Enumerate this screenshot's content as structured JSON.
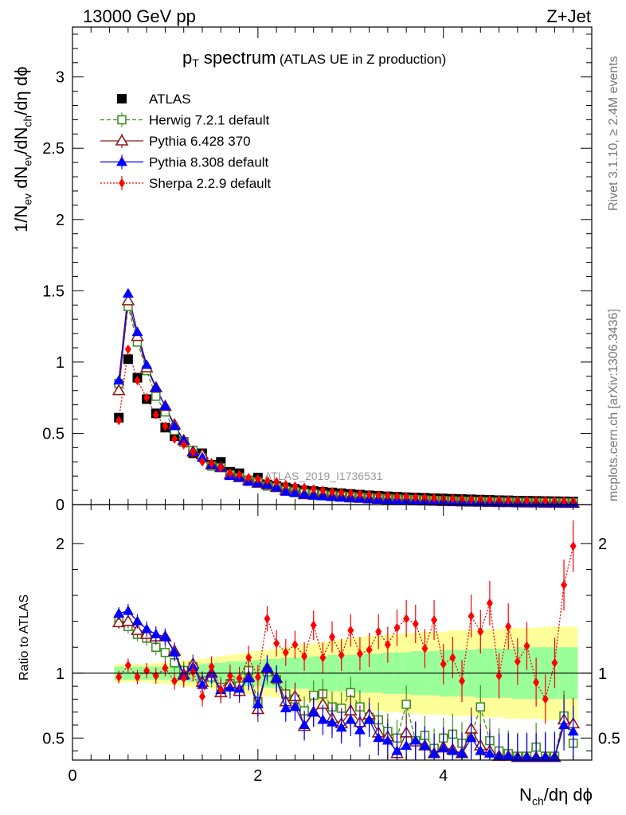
{
  "header": {
    "beam": "13000 GeV pp",
    "process": "Z+Jet"
  },
  "side_labels": {
    "rivet": "Rivet 3.1.10, ≥ 2.4M events",
    "mcplots": "mcplots.cern.ch [arXiv:1306.3436]"
  },
  "colors": {
    "atlas": "#000000",
    "herwig": "#3f8f1f",
    "pythia6": "#8b1a1a",
    "pythia8": "#0000ff",
    "sherpa": "#ff0000",
    "band_yellow": "#ffff99",
    "band_green": "#99ff99"
  },
  "chart_data": [
    {
      "type": "scatter",
      "title": "p_T spectrum (ATLAS UE in Z production)",
      "title_main": "p",
      "title_sub": "T",
      "title_rest": " spectrum",
      "title_note": "(ATLAS UE in Z production)",
      "ylabel": "1/N_ev dN_ev/dN_ch/dη dϕ",
      "watermark": "ATLAS_2019_I1736531",
      "xlim": [
        0,
        5.6
      ],
      "ylim": [
        0,
        3.35
      ],
      "yticks": [
        "0",
        "0.5",
        "1",
        "1.5",
        "2",
        "2.5",
        "3"
      ],
      "x": [
        0.5,
        0.6,
        0.7,
        0.8,
        0.9,
        1.0,
        1.1,
        1.2,
        1.3,
        1.4,
        1.5,
        1.6,
        1.7,
        1.8,
        1.9,
        2.0,
        2.1,
        2.2,
        2.3,
        2.4,
        2.5,
        2.6,
        2.7,
        2.8,
        2.9,
        3.0,
        3.1,
        3.2,
        3.3,
        3.4,
        3.5,
        3.6,
        3.7,
        3.8,
        3.9,
        4.0,
        4.1,
        4.2,
        4.3,
        4.4,
        4.5,
        4.6,
        4.7,
        4.8,
        4.9,
        5.0,
        5.1,
        5.2,
        5.3,
        5.4
      ],
      "legend_position": "top-left",
      "series": [
        {
          "name": "ATLAS",
          "marker": "square-filled",
          "values": [
            0.61,
            1.02,
            0.89,
            0.74,
            0.64,
            0.54,
            0.48,
            0.44,
            0.36,
            0.36,
            0.28,
            0.3,
            0.23,
            0.22,
            0.17,
            0.19,
            0.14,
            0.13,
            0.12,
            0.11,
            0.1,
            0.095,
            0.09,
            0.085,
            0.08,
            0.075,
            0.07,
            0.065,
            0.062,
            0.058,
            0.055,
            0.052,
            0.05,
            0.048,
            0.045,
            0.043,
            0.041,
            0.039,
            0.037,
            0.035,
            0.033,
            0.031,
            0.03,
            0.028,
            0.027,
            0.026,
            0.025,
            0.024,
            0.023,
            0.022
          ]
        },
        {
          "name": "Herwig 7.2.1 default",
          "marker": "square-open",
          "dash": "dashed",
          "values": [
            0.85,
            1.39,
            1.14,
            0.94,
            0.76,
            0.65,
            0.52,
            0.44,
            0.38,
            0.33,
            0.27,
            0.26,
            0.21,
            0.19,
            0.17,
            0.16,
            0.13,
            0.12,
            0.1,
            0.09,
            0.08,
            0.075,
            0.07,
            0.065,
            0.06,
            0.057,
            0.052,
            0.048,
            0.045,
            0.042,
            0.039,
            0.037,
            0.035,
            0.032,
            0.03,
            0.028,
            0.026,
            0.024,
            0.023,
            0.022,
            0.02,
            0.019,
            0.018,
            0.017,
            0.016,
            0.015,
            0.015,
            0.014,
            0.014,
            0.013
          ]
        },
        {
          "name": "Pythia 6.428 370",
          "marker": "triangle-open",
          "dash": "solid",
          "values": [
            0.8,
            1.43,
            1.18,
            0.96,
            0.82,
            0.69,
            0.56,
            0.45,
            0.37,
            0.35,
            0.28,
            0.26,
            0.21,
            0.19,
            0.17,
            0.15,
            0.14,
            0.12,
            0.1,
            0.09,
            0.07,
            0.068,
            0.063,
            0.058,
            0.053,
            0.048,
            0.045,
            0.041,
            0.038,
            0.035,
            0.032,
            0.03,
            0.028,
            0.026,
            0.024,
            0.022,
            0.021,
            0.019,
            0.018,
            0.017,
            0.016,
            0.015,
            0.014,
            0.013,
            0.012,
            0.012,
            0.011,
            0.011,
            0.01,
            0.01
          ]
        },
        {
          "name": "Pythia 8.308 default",
          "marker": "triangle-filled",
          "dash": "solid",
          "values": [
            0.87,
            1.48,
            1.21,
            0.98,
            0.82,
            0.69,
            0.55,
            0.45,
            0.37,
            0.33,
            0.28,
            0.26,
            0.2,
            0.19,
            0.16,
            0.15,
            0.14,
            0.12,
            0.09,
            0.08,
            0.07,
            0.062,
            0.058,
            0.053,
            0.049,
            0.045,
            0.042,
            0.038,
            0.035,
            0.032,
            0.03,
            0.028,
            0.026,
            0.024,
            0.022,
            0.021,
            0.019,
            0.018,
            0.017,
            0.016,
            0.015,
            0.014,
            0.013,
            0.012,
            0.012,
            0.011,
            0.011,
            0.01,
            0.01,
            0.009
          ]
        },
        {
          "name": "Sherpa 2.2.9 default",
          "marker": "diamond-filled",
          "dash": "dotted",
          "values": [
            0.59,
            1.09,
            0.87,
            0.75,
            0.63,
            0.55,
            0.46,
            0.42,
            0.37,
            0.3,
            0.29,
            0.26,
            0.22,
            0.21,
            0.19,
            0.18,
            0.17,
            0.16,
            0.14,
            0.13,
            0.12,
            0.11,
            0.1,
            0.09,
            0.085,
            0.08,
            0.075,
            0.07,
            0.066,
            0.062,
            0.058,
            0.055,
            0.052,
            0.049,
            0.046,
            0.044,
            0.042,
            0.04,
            0.038,
            0.036,
            0.034,
            0.032,
            0.031,
            0.03,
            0.029,
            0.028,
            0.027,
            0.026,
            0.025,
            0.024
          ]
        }
      ]
    },
    {
      "type": "scatter",
      "ylabel": "Ratio to ATLAS",
      "xlabel": "N_ch/dη dϕ",
      "xlim": [
        0,
        5.6
      ],
      "ylim": [
        0.33,
        2.3
      ],
      "xticks": [
        "0",
        "2",
        "4"
      ],
      "yticks": [
        "0.5",
        "1",
        "2"
      ],
      "x": [
        0.5,
        0.6,
        0.7,
        0.8,
        0.9,
        1.0,
        1.1,
        1.2,
        1.3,
        1.4,
        1.5,
        1.6,
        1.7,
        1.8,
        1.9,
        2.0,
        2.1,
        2.2,
        2.3,
        2.4,
        2.5,
        2.6,
        2.7,
        2.8,
        2.9,
        3.0,
        3.1,
        3.2,
        3.3,
        3.4,
        3.5,
        3.6,
        3.7,
        3.8,
        3.9,
        4.0,
        4.1,
        4.2,
        4.3,
        4.4,
        4.5,
        4.6,
        4.7,
        4.8,
        4.9,
        5.0,
        5.1,
        5.2,
        5.3,
        5.4
      ],
      "band_green": [
        0.05,
        0.05,
        0.05,
        0.05,
        0.05,
        0.05,
        0.06,
        0.06,
        0.07,
        0.07,
        0.08,
        0.08,
        0.09,
        0.09,
        0.1,
        0.1,
        0.11,
        0.11,
        0.12,
        0.12,
        0.12,
        0.13,
        0.13,
        0.14,
        0.14,
        0.14,
        0.15,
        0.15,
        0.15,
        0.16,
        0.16,
        0.16,
        0.17,
        0.17,
        0.17,
        0.18,
        0.18,
        0.18,
        0.18,
        0.19,
        0.19,
        0.19,
        0.19,
        0.2,
        0.2,
        0.2,
        0.2,
        0.2,
        0.2,
        0.2
      ],
      "band_yellow": [
        0.07,
        0.07,
        0.07,
        0.07,
        0.08,
        0.08,
        0.09,
        0.1,
        0.11,
        0.11,
        0.12,
        0.13,
        0.14,
        0.15,
        0.16,
        0.17,
        0.18,
        0.19,
        0.2,
        0.21,
        0.22,
        0.23,
        0.24,
        0.25,
        0.26,
        0.27,
        0.28,
        0.29,
        0.29,
        0.3,
        0.3,
        0.31,
        0.31,
        0.32,
        0.32,
        0.32,
        0.33,
        0.33,
        0.33,
        0.34,
        0.34,
        0.34,
        0.35,
        0.35,
        0.35,
        0.35,
        0.36,
        0.36,
        0.36,
        0.36
      ],
      "series": [
        {
          "name": "Herwig 7.2.1 default",
          "values": [
            1.4,
            1.36,
            1.3,
            1.27,
            1.2,
            1.16,
            1.08,
            1.02,
            1.05,
            0.94,
            0.97,
            0.89,
            0.92,
            0.9,
            1.02,
            0.78,
            1.01,
            0.95,
            0.84,
            0.8,
            0.71,
            0.83,
            0.84,
            0.74,
            0.73,
            0.85,
            0.74,
            0.66,
            0.64,
            0.55,
            0.5,
            0.76,
            0.48,
            0.52,
            0.42,
            0.5,
            0.53,
            0.46,
            0.52,
            0.74,
            0.48,
            0.4,
            0.38,
            0.36,
            0.36,
            0.43,
            0.36,
            0.36,
            0.67,
            0.46
          ]
        },
        {
          "name": "Pythia 6.428 370",
          "values": [
            1.39,
            1.4,
            1.33,
            1.3,
            1.28,
            1.28,
            1.17,
            0.99,
            1.07,
            0.93,
            1.0,
            0.85,
            0.92,
            0.86,
            0.97,
            0.72,
            1.04,
            0.96,
            0.78,
            0.82,
            0.59,
            0.7,
            0.76,
            0.65,
            0.61,
            0.71,
            0.62,
            0.68,
            0.54,
            0.51,
            0.38,
            0.54,
            0.47,
            0.44,
            0.38,
            0.43,
            0.41,
            0.38,
            0.57,
            0.44,
            0.4,
            0.36,
            0.36,
            0.35,
            0.35,
            0.35,
            0.35,
            0.35,
            0.64,
            0.61
          ]
        },
        {
          "name": "Pythia 8.308 default",
          "values": [
            1.46,
            1.48,
            1.4,
            1.34,
            1.3,
            1.28,
            1.16,
            0.98,
            1.05,
            0.91,
            1.0,
            0.87,
            0.89,
            0.88,
            0.96,
            0.76,
            1.04,
            0.96,
            0.73,
            0.74,
            0.6,
            0.7,
            0.64,
            0.62,
            0.58,
            0.64,
            0.56,
            0.64,
            0.5,
            0.48,
            0.4,
            0.44,
            0.48,
            0.44,
            0.38,
            0.42,
            0.4,
            0.38,
            0.5,
            0.4,
            0.38,
            0.36,
            0.36,
            0.35,
            0.35,
            0.35,
            0.35,
            0.35,
            0.6,
            0.55
          ]
        },
        {
          "name": "Sherpa 2.2.9 default",
          "values": [
            0.97,
            1.06,
            0.97,
            1.02,
            0.98,
            1.04,
            0.94,
            0.96,
            1.01,
            0.82,
            1.05,
            0.87,
            0.98,
            0.96,
            1.12,
            0.97,
            1.42,
            1.23,
            1.16,
            1.22,
            1.13,
            1.37,
            1.12,
            1.28,
            1.14,
            1.33,
            1.15,
            1.18,
            1.32,
            1.22,
            1.35,
            1.42,
            1.38,
            1.19,
            1.41,
            1.07,
            1.12,
            0.94,
            1.44,
            1.32,
            1.54,
            0.98,
            1.36,
            1.09,
            1.21,
            0.93,
            0.8,
            1.08,
            1.68,
            1.98
          ]
        }
      ]
    }
  ],
  "legend": [
    {
      "label": "ATLAS",
      "series": "atlas"
    },
    {
      "label": "Herwig 7.2.1 default",
      "series": "herwig"
    },
    {
      "label": "Pythia 6.428 370",
      "series": "pythia6"
    },
    {
      "label": "Pythia 8.308 default",
      "series": "pythia8"
    },
    {
      "label": "Sherpa 2.2.9 default",
      "series": "sherpa"
    }
  ]
}
